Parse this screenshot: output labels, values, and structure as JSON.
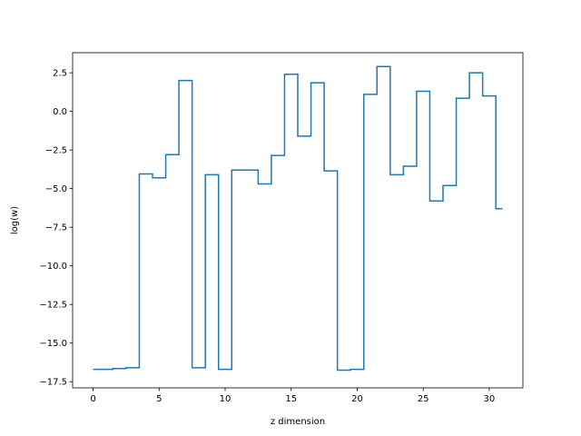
{
  "chart_data": {
    "type": "line",
    "style": "step",
    "title": "",
    "xlabel": "z dimension",
    "ylabel": "log(w)",
    "xlim": [
      -1.55,
      32.55
    ],
    "ylim": [
      -17.9,
      3.8
    ],
    "xticks": [
      0,
      5,
      10,
      15,
      20,
      25,
      30
    ],
    "xtick_labels": [
      "0",
      "5",
      "10",
      "15",
      "20",
      "25",
      "30"
    ],
    "yticks": [
      2.5,
      0.0,
      -2.5,
      -5.0,
      -7.5,
      -10.0,
      -12.5,
      -15.0,
      -17.5
    ],
    "ytick_labels": [
      "2.5",
      "0.0",
      "−2.5",
      "−5.0",
      "−7.5",
      "−10.0",
      "−12.5",
      "−15.0",
      "−17.5"
    ],
    "grid": false,
    "legend": "none",
    "line_color": "#1f77b4",
    "series": [
      {
        "x": [
          0,
          1,
          2,
          3,
          4,
          5,
          6,
          7,
          8,
          9,
          10,
          11,
          12,
          13,
          14,
          15,
          16,
          17,
          18,
          19,
          20,
          21,
          22,
          23,
          24,
          25,
          26,
          27,
          28,
          29,
          30,
          31
        ],
        "values": [
          -16.7,
          -16.7,
          -16.65,
          -16.6,
          -4.05,
          -4.3,
          -2.8,
          2.0,
          -16.6,
          -4.1,
          -16.7,
          -3.8,
          -3.8,
          -4.7,
          -2.85,
          2.4,
          -1.6,
          1.85,
          -3.85,
          -16.75,
          -16.7,
          1.1,
          2.9,
          -4.1,
          -3.55,
          1.3,
          -5.8,
          -4.8,
          0.85,
          2.5,
          1.0,
          -6.3
        ]
      }
    ]
  }
}
